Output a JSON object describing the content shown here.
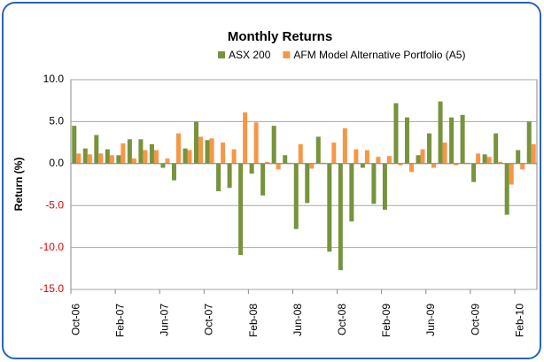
{
  "chart_data": {
    "type": "bar",
    "title": "Monthly Returns",
    "y_label": "Return (%)",
    "categories": [
      "Oct-06",
      null,
      null,
      null,
      "Feb-07",
      null,
      null,
      null,
      "Jun-07",
      null,
      null,
      null,
      "Oct-07",
      null,
      null,
      null,
      "Feb-08",
      null,
      null,
      null,
      "Jun-08",
      null,
      null,
      null,
      "Oct-08",
      null,
      null,
      null,
      "Feb-09",
      null,
      null,
      null,
      "Jun-09",
      null,
      null,
      null,
      "Oct-09",
      null,
      null,
      null,
      "Feb-10",
      null
    ],
    "series": [
      {
        "name": "ASX 200",
        "color": "#77933c",
        "values": [
          4.5,
          1.8,
          3.4,
          1.7,
          1.0,
          2.9,
          2.9,
          2.3,
          -0.5,
          -2.0,
          1.8,
          5.0,
          2.8,
          -3.3,
          -2.9,
          -10.9,
          -1.2,
          -3.8,
          4.5,
          1.0,
          -7.8,
          -4.7,
          3.2,
          -10.5,
          -12.7,
          -6.9,
          -0.5,
          -4.8,
          -5.5,
          7.2,
          5.5,
          1.0,
          3.6,
          7.4,
          5.5,
          5.8,
          -2.2,
          1.1,
          3.6,
          -6.1,
          1.6,
          5.0
        ]
      },
      {
        "name": "AFM Model Alternative Portfolio (A5)",
        "color": "#f79646",
        "values": [
          1.2,
          1.1,
          1.2,
          1.0,
          2.4,
          0.6,
          1.6,
          1.6,
          0.6,
          3.6,
          1.6,
          3.2,
          3.0,
          2.5,
          1.7,
          6.1,
          4.9,
          0.2,
          -0.7,
          0.1,
          2.3,
          -0.6,
          0.1,
          2.5,
          4.2,
          1.7,
          1.6,
          0.8,
          0.9,
          -0.2,
          -1.0,
          1.7,
          -0.5,
          2.5,
          -0.2,
          0.1,
          1.2,
          0.8,
          0.2,
          -2.5,
          -0.7,
          2.3
        ]
      }
    ],
    "ylim": [
      -15,
      10
    ],
    "yticks": [
      {
        "value": -15,
        "label": "-15.0"
      },
      {
        "value": -10,
        "label": "-10.0"
      },
      {
        "value": -5,
        "label": "-5.0"
      },
      {
        "value": 0,
        "label": "0.0"
      },
      {
        "value": 5,
        "label": "5.0"
      },
      {
        "value": 10,
        "label": "10.0"
      }
    ],
    "negative_tick_label_color": "#e00000",
    "grid": true,
    "legend": "top"
  }
}
